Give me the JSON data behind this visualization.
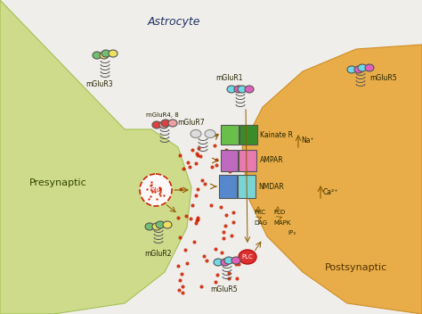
{
  "bg_color": "#f0eeea",
  "title": "Astrocyte",
  "presynaptic_label": "Presynaptic",
  "postsynaptic_label": "Postsynaptic",
  "labels": {
    "mGluR3": "mGluR3",
    "mGluR4_8": "mGluR4, 8",
    "mGluR7": "mGluR7",
    "mGluR1": "mGluR1",
    "mGluR5_astro": "mGluR5",
    "mGluR2": "mGluR2",
    "mGluR5_post": "mGluR5",
    "Kainate_R": "Kainate R",
    "AMPAR": "AMPAR",
    "NMDAR": "NMDAR",
    "PLD": "PLD",
    "PKC": "PKC",
    "MAPK": "MAPK",
    "DAG": "DAG",
    "IP3": "IP₃",
    "Na": "Na⁺",
    "Ca": "Ca²⁺",
    "PLC": "PLC",
    "Glu": "Glu"
  },
  "colors": {
    "astrocyte": "#89b4e0",
    "astrocyte_edge": "#6699cc",
    "presynaptic": "#c8d87a",
    "presynaptic_edge": "#99bb44",
    "postsynaptic": "#e8a83a",
    "postsynaptic_edge": "#cc8820",
    "kainate_green": "#6abf4b",
    "kainate_dark": "#3a8c2a",
    "ampar_pink": "#e87ab0",
    "ampar_purple": "#c06abf",
    "nmdar_teal": "#7ad4d4",
    "nmdar_blue": "#5588cc",
    "receptor_red": "#e04040",
    "receptor_pink": "#f0a0a0",
    "receptor_green": "#70c070",
    "receptor_yellow": "#f0e060",
    "receptor_cyan": "#70d8e8",
    "receptor_magenta": "#e060c0",
    "dark_gray": "#555555",
    "arrow_color": "#8b5a00",
    "dot_red": "#cc2200",
    "plc_red": "#dd3030",
    "white": "#ffffff"
  }
}
